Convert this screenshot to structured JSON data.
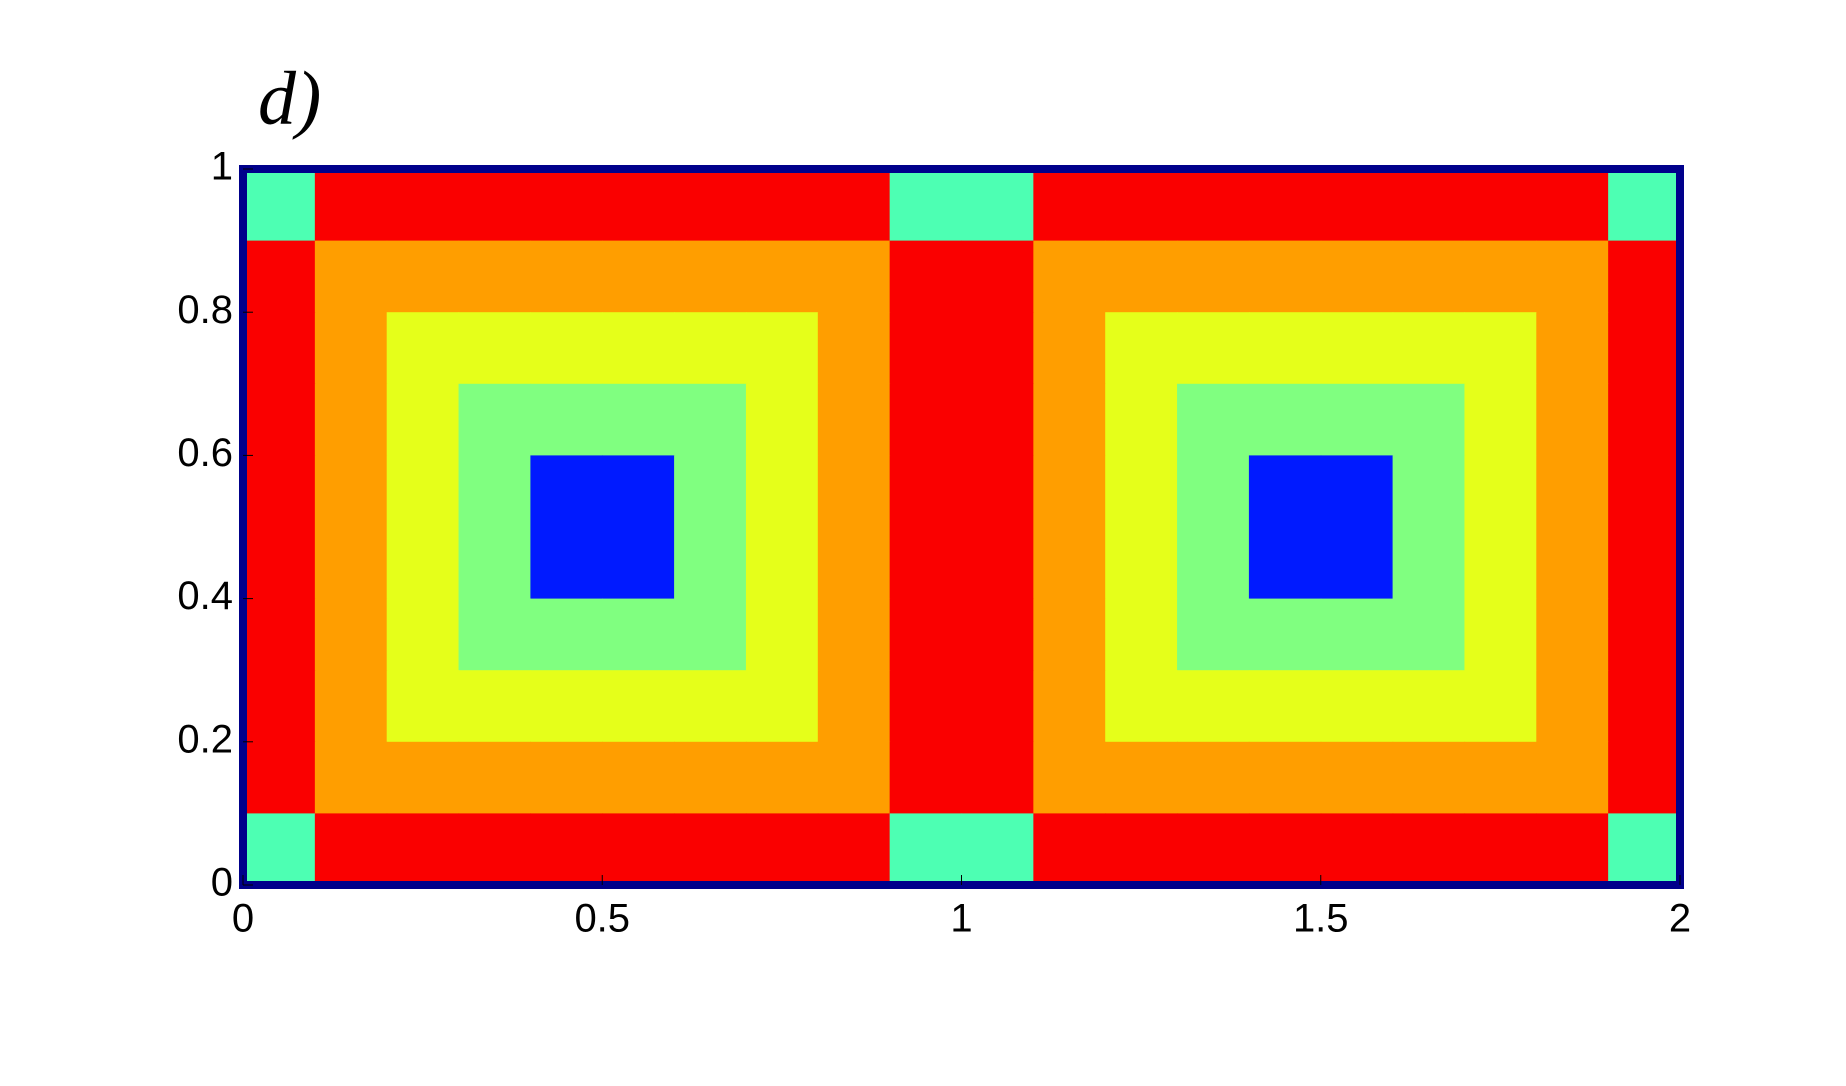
{
  "chart_data": {
    "type": "heatmap",
    "title": "d)",
    "xlim": [
      0,
      2
    ],
    "ylim": [
      0,
      1
    ],
    "xticks": [
      0,
      0.5,
      1,
      1.5,
      2
    ],
    "yticks": [
      0,
      0.2,
      0.4,
      0.6,
      0.8,
      1
    ],
    "colormap": "jet",
    "clim": [
      0,
      1
    ],
    "values": [
      [
        0.45,
        0.88,
        0.88,
        0.88,
        0.88,
        0.88,
        0.88,
        0.88,
        0.88,
        0.45,
        0.45,
        0.88,
        0.88,
        0.88,
        0.88,
        0.88,
        0.88,
        0.88,
        0.88,
        0.45
      ],
      [
        0.88,
        0.72,
        0.72,
        0.72,
        0.72,
        0.72,
        0.72,
        0.72,
        0.72,
        0.88,
        0.88,
        0.72,
        0.72,
        0.72,
        0.72,
        0.72,
        0.72,
        0.72,
        0.72,
        0.88
      ],
      [
        0.88,
        0.72,
        0.6,
        0.6,
        0.6,
        0.6,
        0.6,
        0.6,
        0.72,
        0.88,
        0.88,
        0.72,
        0.6,
        0.6,
        0.6,
        0.6,
        0.6,
        0.6,
        0.72,
        0.88
      ],
      [
        0.88,
        0.72,
        0.6,
        0.5,
        0.5,
        0.5,
        0.5,
        0.6,
        0.72,
        0.88,
        0.88,
        0.72,
        0.6,
        0.5,
        0.5,
        0.5,
        0.5,
        0.6,
        0.72,
        0.88
      ],
      [
        0.88,
        0.72,
        0.6,
        0.5,
        0.15,
        0.15,
        0.5,
        0.6,
        0.72,
        0.88,
        0.88,
        0.72,
        0.6,
        0.5,
        0.15,
        0.15,
        0.5,
        0.6,
        0.72,
        0.88
      ],
      [
        0.88,
        0.72,
        0.6,
        0.5,
        0.15,
        0.15,
        0.5,
        0.6,
        0.72,
        0.88,
        0.88,
        0.72,
        0.6,
        0.5,
        0.15,
        0.15,
        0.5,
        0.6,
        0.72,
        0.88
      ],
      [
        0.88,
        0.72,
        0.6,
        0.5,
        0.5,
        0.5,
        0.5,
        0.6,
        0.72,
        0.88,
        0.88,
        0.72,
        0.6,
        0.5,
        0.5,
        0.5,
        0.5,
        0.6,
        0.72,
        0.88
      ],
      [
        0.88,
        0.72,
        0.6,
        0.6,
        0.6,
        0.6,
        0.6,
        0.6,
        0.72,
        0.88,
        0.88,
        0.72,
        0.6,
        0.6,
        0.6,
        0.6,
        0.6,
        0.6,
        0.72,
        0.88
      ],
      [
        0.88,
        0.72,
        0.72,
        0.72,
        0.72,
        0.72,
        0.72,
        0.72,
        0.72,
        0.88,
        0.88,
        0.72,
        0.72,
        0.72,
        0.72,
        0.72,
        0.72,
        0.72,
        0.72,
        0.88
      ],
      [
        0.45,
        0.88,
        0.88,
        0.88,
        0.88,
        0.88,
        0.88,
        0.88,
        0.88,
        0.45,
        0.45,
        0.88,
        0.88,
        0.88,
        0.88,
        0.88,
        0.88,
        0.88,
        0.88,
        0.45
      ]
    ]
  }
}
